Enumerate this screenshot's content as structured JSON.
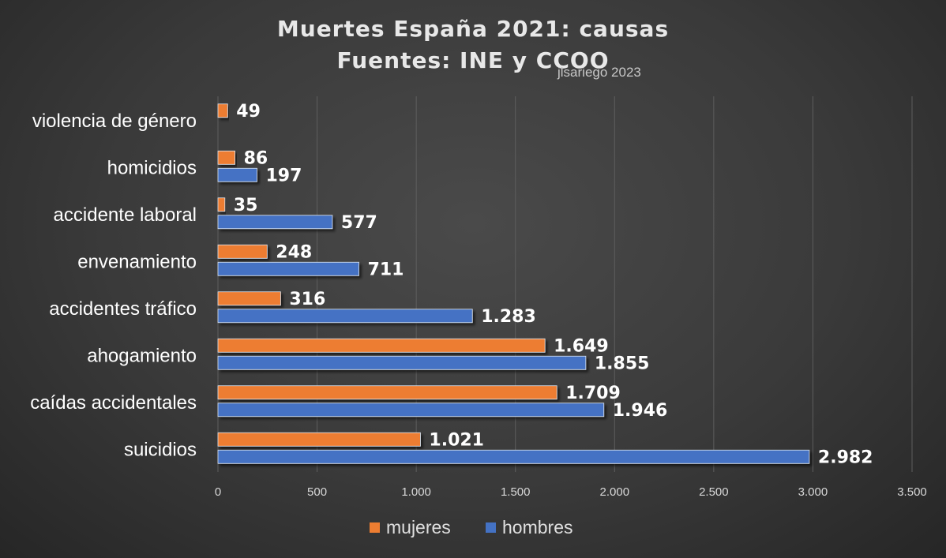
{
  "chart_data": {
    "type": "bar",
    "orientation": "horizontal",
    "title": "Muertes España 2021: causas",
    "subtitle": "Fuentes: INE y CCOO",
    "credit": "jlsariego 2023",
    "categories": [
      "violencia de género",
      "homicidios",
      "accidente laboral",
      "envenamiento",
      "accidentes tráfico",
      "ahogamiento",
      "caídas accidentales",
      "suicidios"
    ],
    "series": [
      {
        "name": "mujeres",
        "color": "#ed7d31",
        "values": [
          49,
          86,
          35,
          248,
          316,
          1649,
          1709,
          1021
        ],
        "labels": [
          "49",
          "86",
          "35",
          "248",
          "316",
          "1.649",
          "1.709",
          "1.021"
        ]
      },
      {
        "name": "hombres",
        "color": "#4472c4",
        "values": [
          null,
          197,
          577,
          711,
          1283,
          1855,
          1946,
          2982
        ],
        "labels": [
          "",
          "197",
          "577",
          "711",
          "1.283",
          "1.855",
          "1.946",
          "2.982"
        ]
      }
    ],
    "xlim": [
      0,
      3500
    ],
    "xticks": [
      0,
      500,
      1000,
      1500,
      2000,
      2500,
      3000,
      3500
    ],
    "xtick_labels": [
      "0",
      "500",
      "1.000",
      "1.500",
      "2.000",
      "2.500",
      "3.000",
      "3.500"
    ],
    "grid": "vertical",
    "legend_position": "bottom"
  }
}
